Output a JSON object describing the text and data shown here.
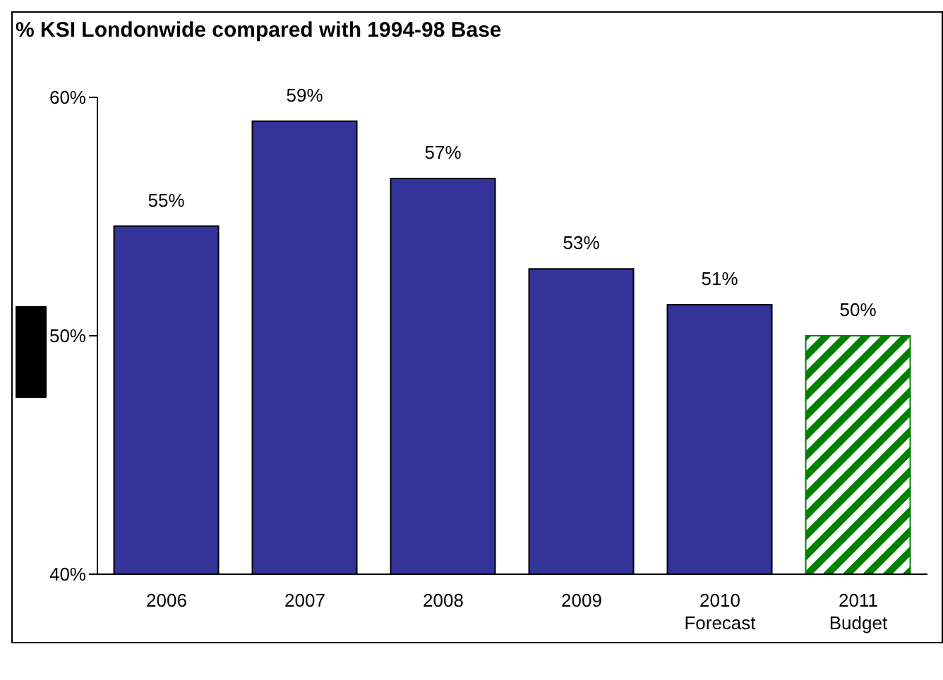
{
  "chart_data": {
    "type": "bar",
    "title": "% KSI Londonwide compared with 1994-98 Base",
    "categories": [
      "2006",
      "2007",
      "2008",
      "2009",
      "2010\nForecast",
      "2011\nBudget"
    ],
    "values": [
      54.6,
      59.0,
      56.6,
      52.8,
      51.3,
      50.0
    ],
    "colors": [
      "#333399",
      "#333399",
      "#333399",
      "#333399",
      "#333399",
      "#008000"
    ],
    "value_labels": [
      "55%",
      "59%",
      "57%",
      "53%",
      "51%",
      "50%"
    ],
    "ylim": [
      40,
      60
    ],
    "yticks": [
      {
        "value": 40,
        "label": "40%"
      },
      {
        "value": 50,
        "label": "50%"
      },
      {
        "value": 60,
        "label": "60%"
      }
    ],
    "grid": false
  }
}
